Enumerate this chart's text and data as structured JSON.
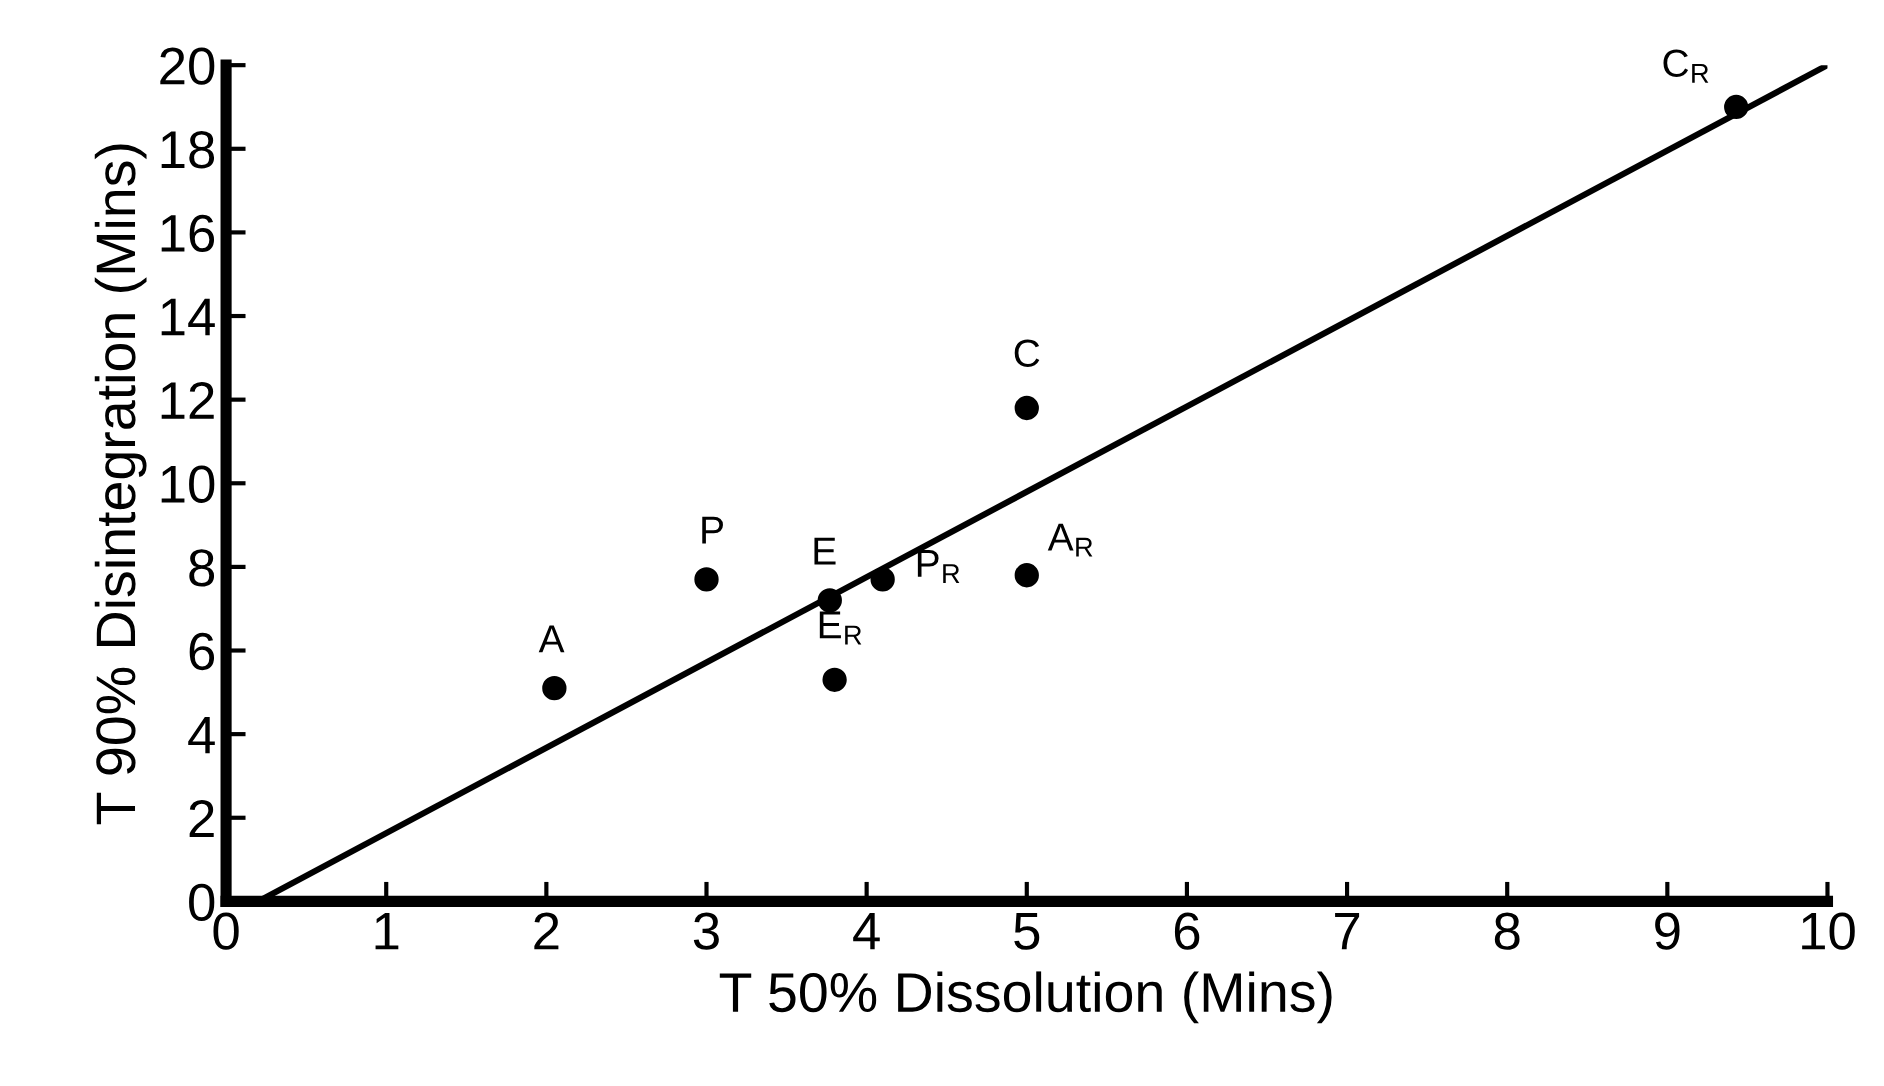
{
  "chart_data": {
    "type": "scatter",
    "xlabel": "T 50% Dissolution (Mins)",
    "ylabel": "T 90% Disintegration (Mins)",
    "xlim": [
      0,
      10
    ],
    "ylim": [
      0,
      20
    ],
    "xticks": [
      0,
      1,
      2,
      3,
      4,
      5,
      6,
      7,
      8,
      9,
      10
    ],
    "yticks": [
      0,
      2,
      4,
      6,
      8,
      10,
      12,
      14,
      16,
      18,
      20
    ],
    "grid": false,
    "series": [
      {
        "marker": "circle",
        "color": "#000000",
        "x": [
          2.05,
          3.0,
          3.77,
          3.8,
          4.1,
          5.0,
          5.0,
          9.43
        ],
        "values": [
          5.1,
          7.7,
          7.2,
          5.3,
          7.7,
          7.8,
          11.8,
          19.0
        ]
      },
      {
        "type": "line",
        "color": "#000000",
        "line_style": "solid",
        "x": [
          0.2,
          10
        ],
        "values": [
          0,
          20
        ]
      }
    ],
    "annotations": [
      {
        "text": "A",
        "x": 2.05,
        "y": 5.1
      },
      {
        "text": "P",
        "x": 3.0,
        "y": 7.7
      },
      {
        "text": "E",
        "x": 3.77,
        "y": 7.2
      },
      {
        "text": "E$_{R}$",
        "x": 3.8,
        "y": 5.3
      },
      {
        "text": "P$_{R}$",
        "x": 4.1,
        "y": 7.7
      },
      {
        "text": "A$_{R}$",
        "x": 5.0,
        "y": 7.8
      },
      {
        "text": "C",
        "x": 5.0,
        "y": 11.8
      },
      {
        "text": "C$_{R}$",
        "x": 9.43,
        "y": 19.0
      }
    ]
  }
}
